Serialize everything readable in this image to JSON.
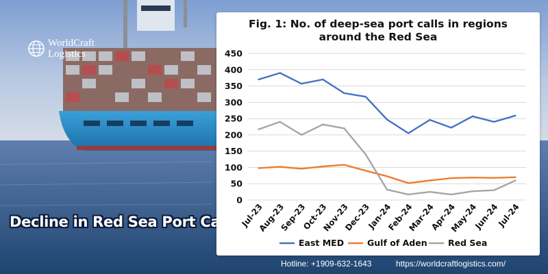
{
  "brand": {
    "name_line1": "WorldCraft",
    "name_line2": "Logistics",
    "icon": "globe-icon"
  },
  "headline": "Decline in Red Sea Port Calls",
  "footer": {
    "hotline": "Hotline: +1909-632-1643",
    "website": "https://worldcraftlogistics.com/"
  },
  "colors": {
    "east_med": "#4472c4",
    "gulf_of_aden": "#ed7d31",
    "red_sea": "#a5a5a5",
    "sea_top": "#6f8fc6",
    "sea_bottom": "#274f7e"
  },
  "chart_data": {
    "type": "line",
    "title_line1": "Fig. 1: No. of deep-sea port calls in regions",
    "title_line2": "around the Red Sea",
    "x": [
      "Jul-23",
      "Aug-23",
      "Sep-23",
      "Oct-23",
      "Nov-23",
      "Dec-23",
      "Jan-24",
      "Feb-24",
      "Mar-24",
      "Apr-24",
      "May-24",
      "Jun-24",
      "Jul-24"
    ],
    "ylim": [
      0,
      450
    ],
    "yticks": [
      "0",
      "50",
      "100",
      "150",
      "200",
      "250",
      "300",
      "350",
      "400",
      "450"
    ],
    "grid": true,
    "legend_position": "bottom",
    "series": [
      {
        "name": "East MED",
        "color": "#4472c4",
        "values": [
          370,
          390,
          357,
          370,
          328,
          317,
          247,
          205,
          246,
          222,
          257,
          240,
          259
        ]
      },
      {
        "name": "Gulf of Aden",
        "color": "#ed7d31",
        "values": [
          98,
          102,
          96,
          103,
          108,
          90,
          73,
          52,
          60,
          67,
          69,
          68,
          70
        ]
      },
      {
        "name": "Red Sea",
        "color": "#a5a5a5",
        "values": [
          217,
          240,
          200,
          232,
          220,
          140,
          32,
          17,
          25,
          17,
          27,
          30,
          60
        ]
      }
    ]
  }
}
